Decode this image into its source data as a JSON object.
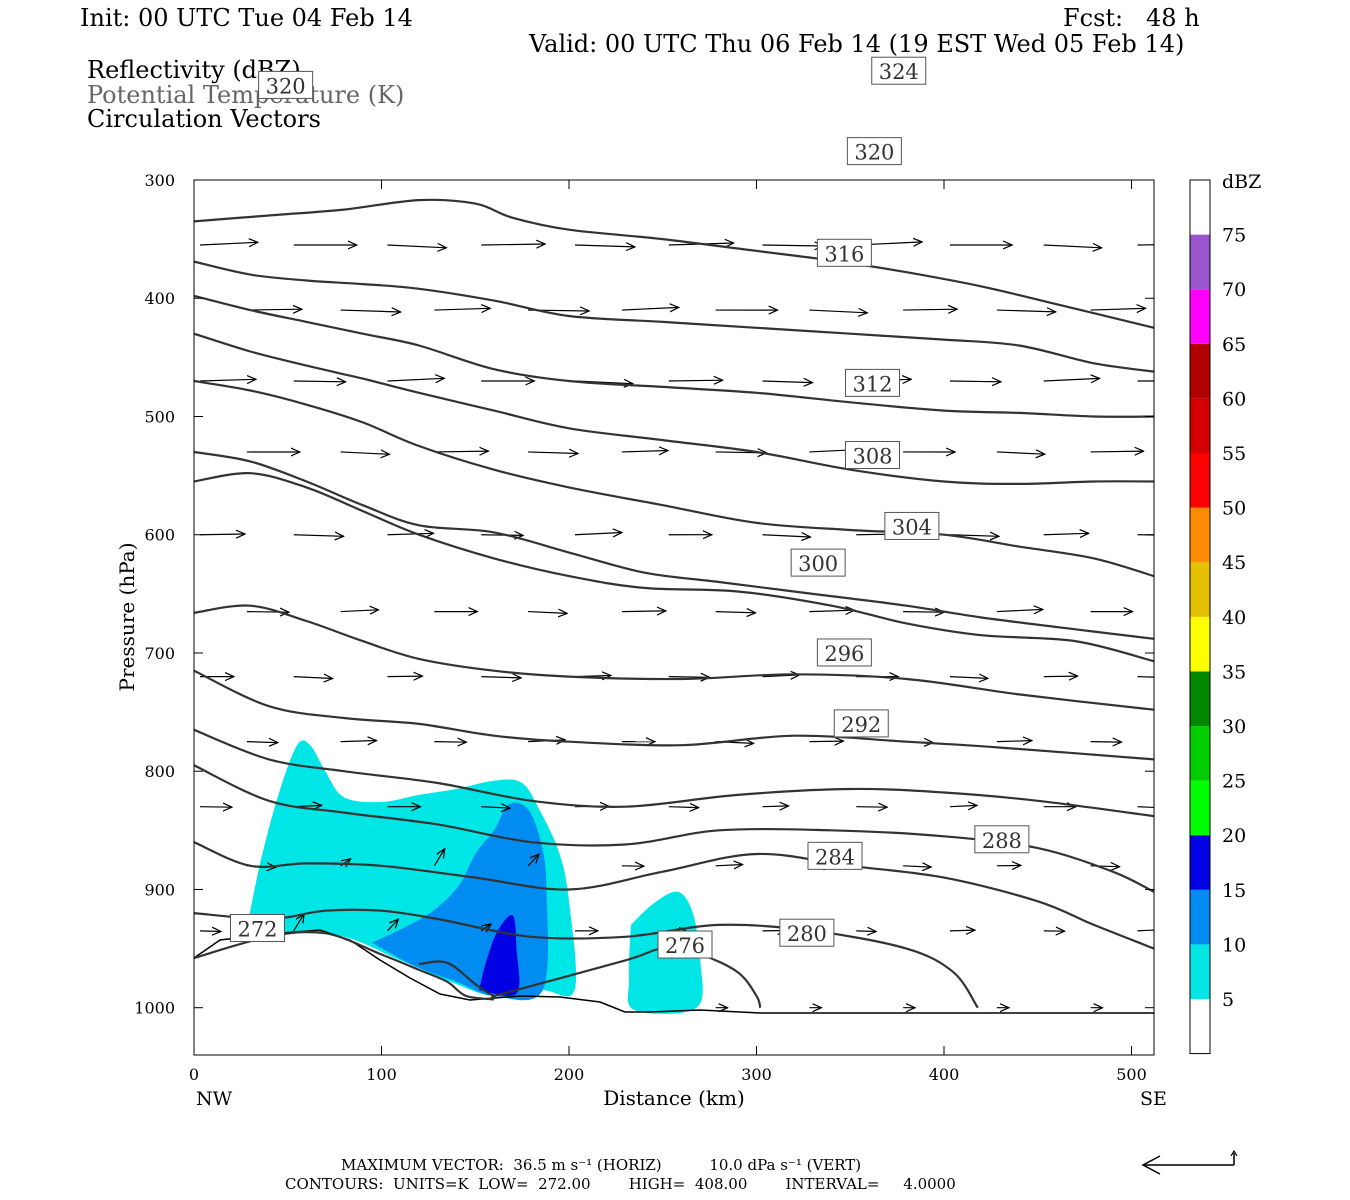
{
  "header": {
    "init": "Init: 00 UTC Tue 04 Feb 14",
    "fcst": "Fcst:   48 h",
    "valid": "Valid: 00 UTC Thu 06 Feb 14 (19 EST Wed 05 Feb 14)"
  },
  "fields": {
    "reflectivity": "Reflectivity (dBZ)",
    "theta": "Potential Temperature (K)",
    "vectors": "Circulation Vectors"
  },
  "footer": {
    "max_vector": "MAXIMUM VECTOR:  36.5 m s⁻¹ (HORIZ)          10.0 dPa s⁻¹ (VERT)",
    "contours": "CONTOURS:  UNITS=K  LOW=  272.00        HIGH=  408.00        INTERVAL=     4.0000"
  },
  "colors": {
    "theta_line": "#333333",
    "frame": "#000000"
  },
  "chart_data": {
    "type": "cross-section",
    "xlabel": "Distance (km)",
    "ylabel": "Pressure (hPa)",
    "xlim": [
      0,
      512
    ],
    "ylim": [
      1040,
      300
    ],
    "x_ticks": [
      0,
      100,
      200,
      300,
      400,
      500
    ],
    "y_ticks": [
      300,
      400,
      500,
      600,
      700,
      800,
      900,
      1000
    ],
    "x_end_labels": {
      "left": "NW",
      "right": "SE"
    },
    "colorbar": {
      "label": "dBZ",
      "ticks": [
        5,
        10,
        15,
        20,
        25,
        30,
        35,
        40,
        45,
        50,
        55,
        60,
        65,
        70,
        75
      ],
      "colors": [
        "#ffffff",
        "#00e5e5",
        "#008cf0",
        "#0000e5",
        "#00ff00",
        "#00cc00",
        "#008800",
        "#ffff00",
        "#e5c000",
        "#ff8c00",
        "#ff0000",
        "#d40000",
        "#b00000",
        "#ff00ff",
        "#9955cc",
        "#ffffff"
      ]
    },
    "reflectivity_regions": [
      {
        "dbz": 5,
        "points": [
          [
            28,
            935
          ],
          [
            35,
            880
          ],
          [
            45,
            820
          ],
          [
            55,
            778
          ],
          [
            62,
            778
          ],
          [
            70,
            800
          ],
          [
            80,
            822
          ],
          [
            100,
            826
          ],
          [
            120,
            820
          ],
          [
            140,
            815
          ],
          [
            160,
            808
          ],
          [
            175,
            810
          ],
          [
            185,
            835
          ],
          [
            195,
            870
          ],
          [
            200,
            910
          ],
          [
            203,
            985
          ],
          [
            185,
            985
          ],
          [
            160,
            990
          ],
          [
            140,
            980
          ],
          [
            110,
            960
          ],
          [
            80,
            940
          ],
          [
            50,
            937
          ]
        ]
      },
      {
        "dbz": 5,
        "points": [
          [
            233,
            930
          ],
          [
            245,
            912
          ],
          [
            258,
            902
          ],
          [
            266,
            920
          ],
          [
            270,
            960
          ],
          [
            268,
            1000
          ],
          [
            235,
            1002
          ],
          [
            232,
            975
          ]
        ]
      },
      {
        "dbz": 10,
        "points": [
          [
            95,
            945
          ],
          [
            115,
            930
          ],
          [
            130,
            915
          ],
          [
            142,
            895
          ],
          [
            150,
            870
          ],
          [
            160,
            850
          ],
          [
            168,
            828
          ],
          [
            178,
            832
          ],
          [
            185,
            860
          ],
          [
            188,
            900
          ],
          [
            186,
            985
          ],
          [
            160,
            990
          ],
          [
            140,
            978
          ],
          [
            118,
            965
          ]
        ]
      },
      {
        "dbz": 15,
        "points": [
          [
            152,
            985
          ],
          [
            156,
            960
          ],
          [
            162,
            935
          ],
          [
            170,
            922
          ],
          [
            172,
            950
          ],
          [
            172,
            988
          ]
        ]
      }
    ],
    "theta_contours": [
      {
        "value": 272,
        "label_at": [
          20,
          933
        ],
        "points": [
          [
            0,
            958
          ],
          [
            40,
            940
          ],
          [
            70,
            937
          ],
          [
            100,
            955
          ],
          [
            120,
            968
          ],
          [
            135,
            978
          ],
          [
            145,
            990
          ],
          [
            160,
            993
          ]
        ]
      },
      {
        "value": 276,
        "label_at": [
          248,
          947
        ],
        "points": [
          [
            120,
            963
          ],
          [
            135,
            962
          ],
          [
            150,
            980
          ],
          [
            160,
            990
          ],
          [
            165,
            988
          ],
          [
            230,
            960
          ],
          [
            250,
            950
          ],
          [
            270,
            955
          ],
          [
            290,
            970
          ],
          [
            300,
            990
          ],
          [
            302,
            1000
          ]
        ]
      },
      {
        "value": 280,
        "label_at": [
          313,
          937
        ],
        "points": [
          [
            0,
            920
          ],
          [
            40,
            925
          ],
          [
            70,
            918
          ],
          [
            100,
            918
          ],
          [
            130,
            925
          ],
          [
            180,
            940
          ],
          [
            230,
            940
          ],
          [
            280,
            930
          ],
          [
            330,
            935
          ],
          [
            380,
            950
          ],
          [
            405,
            970
          ],
          [
            418,
            1000
          ]
        ]
      },
      {
        "value": 284,
        "label_at": [
          328,
          872
        ],
        "points": [
          [
            0,
            860
          ],
          [
            30,
            880
          ],
          [
            60,
            878
          ],
          [
            100,
            880
          ],
          [
            150,
            890
          ],
          [
            200,
            900
          ],
          [
            250,
            885
          ],
          [
            300,
            870
          ],
          [
            350,
            880
          ],
          [
            400,
            890
          ],
          [
            450,
            910
          ],
          [
            480,
            930
          ],
          [
            512,
            950
          ]
        ]
      },
      {
        "value": 288,
        "label_at": [
          417,
          858
        ],
        "points": [
          [
            0,
            795
          ],
          [
            40,
            825
          ],
          [
            80,
            835
          ],
          [
            130,
            845
          ],
          [
            180,
            860
          ],
          [
            230,
            862
          ],
          [
            280,
            850
          ],
          [
            340,
            850
          ],
          [
            400,
            855
          ],
          [
            450,
            865
          ],
          [
            490,
            885
          ],
          [
            512,
            902
          ]
        ]
      },
      {
        "value": 292,
        "label_at": [
          342,
          760
        ],
        "points": [
          [
            0,
            765
          ],
          [
            40,
            790
          ],
          [
            80,
            800
          ],
          [
            130,
            810
          ],
          [
            180,
            825
          ],
          [
            230,
            830
          ],
          [
            290,
            820
          ],
          [
            350,
            815
          ],
          [
            400,
            818
          ],
          [
            450,
            825
          ],
          [
            512,
            838
          ]
        ]
      },
      {
        "value": 296,
        "label_at": [
          333,
          700
        ],
        "points": [
          [
            0,
            715
          ],
          [
            40,
            745
          ],
          [
            80,
            755
          ],
          [
            120,
            760
          ],
          [
            160,
            770
          ],
          [
            200,
            775
          ],
          [
            260,
            778
          ],
          [
            320,
            770
          ],
          [
            380,
            775
          ],
          [
            430,
            780
          ],
          [
            512,
            790
          ]
        ]
      },
      {
        "value": 300,
        "label_at": [
          319,
          624
        ],
        "points": [
          [
            0,
            666
          ],
          [
            30,
            660
          ],
          [
            60,
            673
          ],
          [
            90,
            690
          ],
          [
            120,
            705
          ],
          [
            160,
            715
          ],
          [
            200,
            720
          ],
          [
            260,
            722
          ],
          [
            320,
            718
          ],
          [
            380,
            722
          ],
          [
            440,
            735
          ],
          [
            512,
            748
          ]
        ]
      },
      {
        "value": 304,
        "label_at": [
          369,
          593
        ],
        "points": [
          [
            0,
            555
          ],
          [
            30,
            548
          ],
          [
            60,
            560
          ],
          [
            90,
            580
          ],
          [
            120,
            600
          ],
          [
            160,
            620
          ],
          [
            200,
            635
          ],
          [
            240,
            645
          ],
          [
            290,
            648
          ],
          [
            340,
            660
          ],
          [
            380,
            675
          ],
          [
            420,
            685
          ],
          [
            470,
            690
          ],
          [
            512,
            707
          ]
        ]
      },
      {
        "value": 308,
        "label_at": [
          348,
          533
        ],
        "points": [
          [
            0,
            530
          ],
          [
            30,
            538
          ],
          [
            60,
            555
          ],
          [
            90,
            575
          ],
          [
            120,
            592
          ],
          [
            160,
            598
          ],
          [
            200,
            615
          ],
          [
            240,
            632
          ],
          [
            280,
            640
          ],
          [
            330,
            650
          ],
          [
            380,
            660
          ],
          [
            420,
            670
          ],
          [
            470,
            680
          ],
          [
            512,
            688
          ]
        ]
      },
      {
        "value": 312,
        "label_at": [
          348,
          472
        ],
        "points": [
          [
            0,
            470
          ],
          [
            30,
            478
          ],
          [
            60,
            490
          ],
          [
            90,
            505
          ],
          [
            120,
            525
          ],
          [
            160,
            545
          ],
          [
            200,
            560
          ],
          [
            250,
            575
          ],
          [
            300,
            590
          ],
          [
            350,
            596
          ],
          [
            400,
            600
          ],
          [
            440,
            610
          ],
          [
            480,
            620
          ],
          [
            512,
            635
          ]
        ]
      },
      {
        "value": 316,
        "label_at": [
          333,
          362
        ],
        "points": [
          [
            0,
            430
          ],
          [
            30,
            445
          ],
          [
            60,
            457
          ],
          [
            90,
            468
          ],
          [
            120,
            480
          ],
          [
            160,
            495
          ],
          [
            200,
            510
          ],
          [
            250,
            520
          ],
          [
            300,
            530
          ],
          [
            350,
            545
          ],
          [
            400,
            555
          ],
          [
            440,
            557
          ],
          [
            480,
            555
          ],
          [
            512,
            555
          ]
        ]
      },
      {
        "value": 320,
        "label_at": [
          349,
          276
        ],
        "points": [
          [
            0,
            398
          ],
          [
            30,
            410
          ],
          [
            60,
            420
          ],
          [
            90,
            430
          ],
          [
            120,
            440
          ],
          [
            160,
            460
          ],
          [
            200,
            470
          ],
          [
            250,
            475
          ],
          [
            300,
            480
          ],
          [
            350,
            488
          ],
          [
            400,
            495
          ],
          [
            440,
            497
          ],
          [
            480,
            500
          ],
          [
            512,
            500
          ]
        ]
      },
      {
        "value": 320,
        "label_at": [
          35,
          220
        ],
        "points": [
          [
            0,
            369
          ],
          [
            30,
            380
          ],
          [
            60,
            385
          ],
          [
            90,
            388
          ],
          [
            120,
            392
          ],
          [
            160,
            402
          ],
          [
            200,
            415
          ],
          [
            250,
            420
          ],
          [
            300,
            425
          ],
          [
            350,
            430
          ],
          [
            400,
            435
          ],
          [
            440,
            440
          ],
          [
            480,
            455
          ],
          [
            512,
            462
          ]
        ]
      },
      {
        "value": 324,
        "label_at": [
          362,
          208
        ],
        "points": [
          [
            0,
            335
          ],
          [
            40,
            330
          ],
          [
            80,
            325
          ],
          [
            120,
            317
          ],
          [
            150,
            320
          ],
          [
            170,
            332
          ],
          [
            200,
            342
          ],
          [
            250,
            350
          ],
          [
            300,
            360
          ],
          [
            340,
            368
          ],
          [
            380,
            378
          ],
          [
            420,
            390
          ],
          [
            460,
            405
          ],
          [
            512,
            425
          ]
        ]
      }
    ]
  }
}
